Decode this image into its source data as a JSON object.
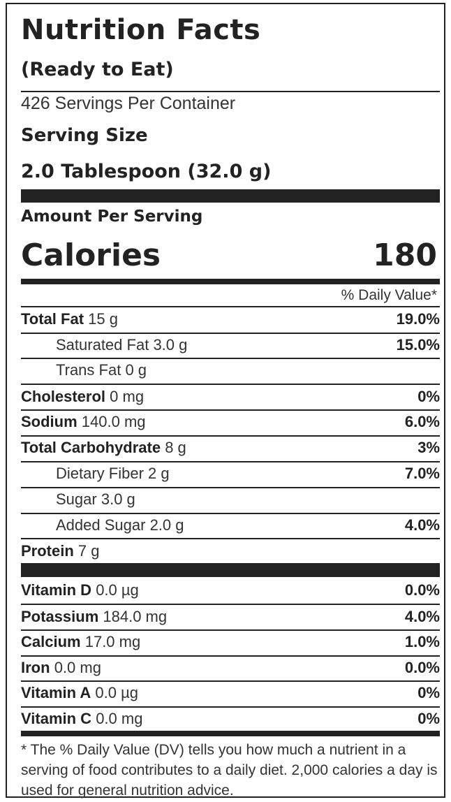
{
  "header": {
    "title": "Nutrition Facts",
    "subtitle": "(Ready to Eat)",
    "servings_per_container": "426 Servings Per Container",
    "serving_size_label": "Serving Size",
    "serving_size_value": "2.0 Tablespoon (32.0 g)"
  },
  "calories": {
    "amount_per_serving": "Amount Per Serving",
    "label": "Calories",
    "value": "180"
  },
  "daily_value_header": "% Daily Value*",
  "nutrients": [
    {
      "name": "Total Fat",
      "amount": "15 g",
      "dv": "19.0%"
    },
    {
      "name": "Saturated Fat",
      "amount": "3.0 g",
      "dv": "15.0%"
    },
    {
      "name": "Trans Fat",
      "amount": "0 g",
      "dv": ""
    },
    {
      "name": "Cholesterol",
      "amount": "0 mg",
      "dv": "0%"
    },
    {
      "name": "Sodium",
      "amount": "140.0 mg",
      "dv": "6.0%"
    },
    {
      "name": "Total Carbohydrate",
      "amount": "8 g",
      "dv": "3%"
    },
    {
      "name": "Dietary Fiber",
      "amount": "2 g",
      "dv": "7.0%"
    },
    {
      "name": "Sugar",
      "amount": "3.0 g",
      "dv": ""
    },
    {
      "name": "Added Sugar",
      "amount": "2.0 g",
      "dv": "4.0%"
    },
    {
      "name": "Protein",
      "amount": "7 g",
      "dv": ""
    }
  ],
  "vitamins": [
    {
      "name": "Vitamin D",
      "amount": "0.0 µg",
      "dv": "0.0%"
    },
    {
      "name": "Potassium",
      "amount": "184.0 mg",
      "dv": "4.0%"
    },
    {
      "name": "Calcium",
      "amount": "17.0 mg",
      "dv": "1.0%"
    },
    {
      "name": "Iron",
      "amount": "0.0 mg",
      "dv": "0.0%"
    },
    {
      "name": "Vitamin A",
      "amount": "0.0 µg",
      "dv": "0%"
    },
    {
      "name": "Vitamin C",
      "amount": "0.0 mg",
      "dv": "0%"
    }
  ],
  "footnote": "* The % Daily Value (DV) tells you how much a nutrient in a serving of food contributes to a daily diet. 2,000 calories a day is used for general nutrition advice."
}
